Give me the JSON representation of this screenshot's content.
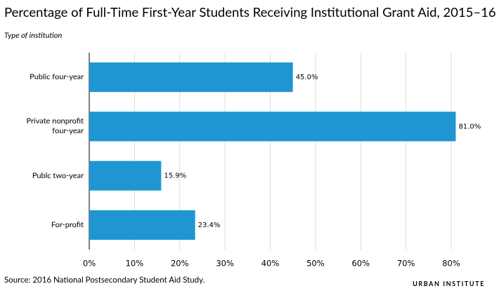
{
  "chart_data": {
    "type": "bar",
    "orientation": "horizontal",
    "title": "Percentage of Full-Time First-Year Students Receiving Institutional Grant Aid, 2015–16",
    "subtitle": "Type of institution",
    "source": "Source: 2016 National Postsecondary Student Aid Study.",
    "brand": "URBAN INSTITUTE",
    "categories": [
      "Public four-year",
      "Private nonprofit four-year",
      "Publc two-year",
      "For-profit"
    ],
    "values": [
      45.0,
      81.0,
      15.9,
      23.4
    ],
    "value_labels": [
      "45.0%",
      "81.0%",
      "15.9%",
      "23.4%"
    ],
    "color": "#1f96d2",
    "xlim": [
      0,
      82
    ],
    "xticks": [
      {
        "value": 0,
        "label": "0%"
      },
      {
        "value": 10,
        "label": "10%"
      },
      {
        "value": 20,
        "label": "20%"
      },
      {
        "value": 30,
        "label": "30%"
      },
      {
        "value": 40,
        "label": "40%"
      },
      {
        "value": 50,
        "label": "50%"
      },
      {
        "value": 60,
        "label": "60%"
      },
      {
        "value": 70,
        "label": "70%"
      },
      {
        "value": 80,
        "label": "80%"
      }
    ],
    "grid": true
  }
}
